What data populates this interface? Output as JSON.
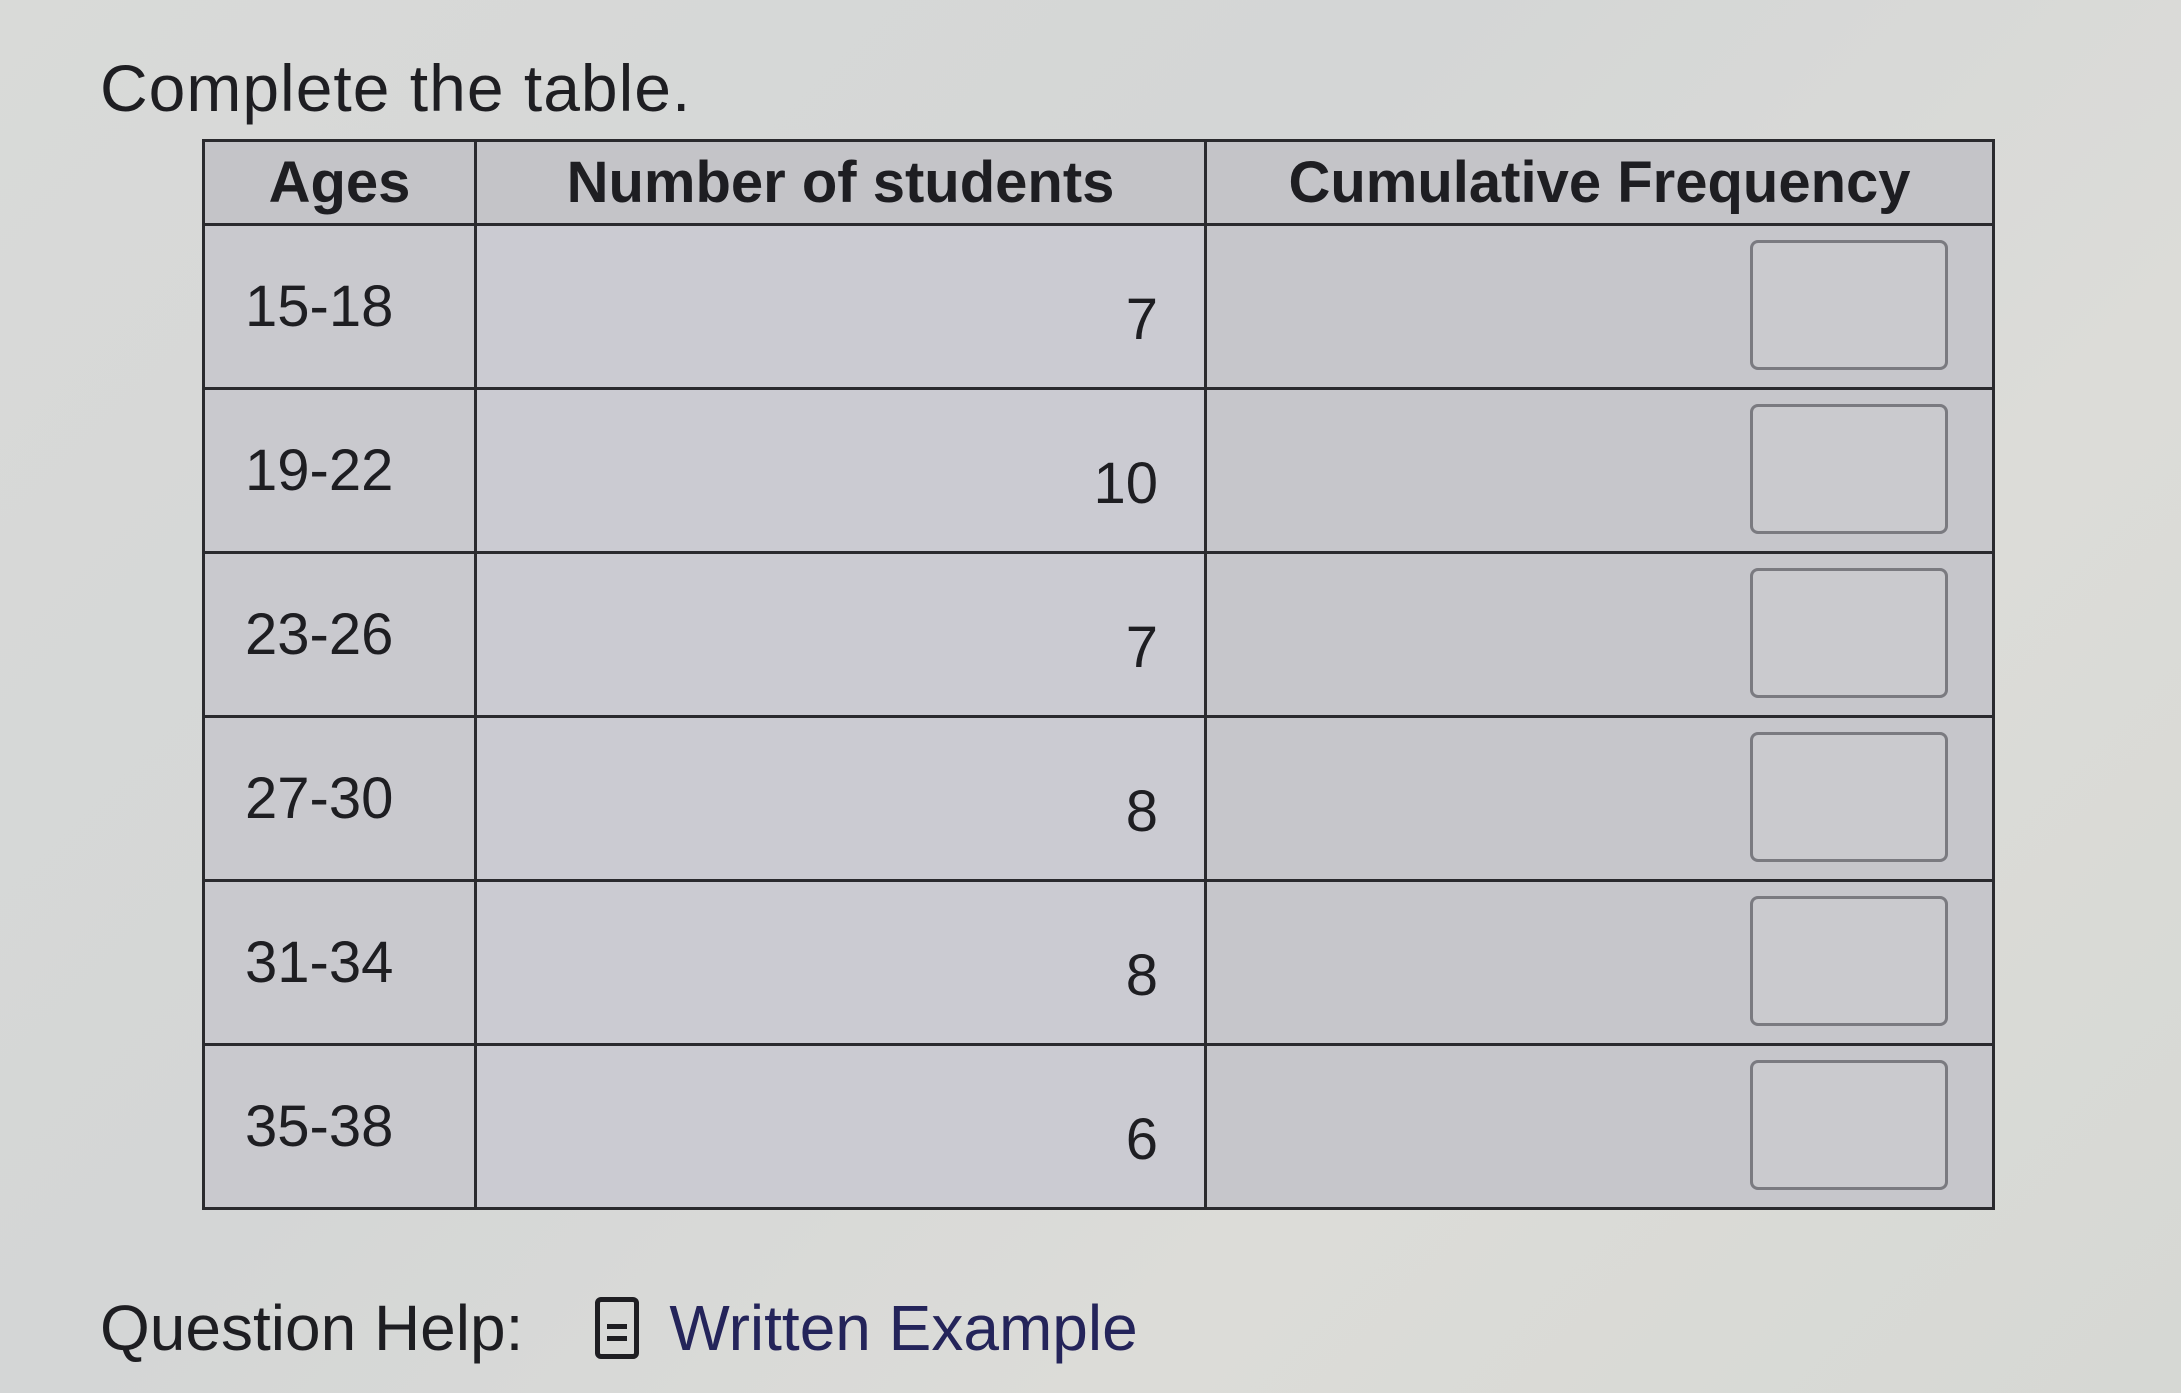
{
  "prompt": "Complete the table.",
  "table": {
    "headers": [
      "Ages",
      "Number of students",
      "Cumulative Frequency"
    ],
    "rows": [
      {
        "ages": "15-18",
        "students": "7",
        "cumulative": ""
      },
      {
        "ages": "19-22",
        "students": "10",
        "cumulative": ""
      },
      {
        "ages": "23-26",
        "students": "7",
        "cumulative": ""
      },
      {
        "ages": "27-30",
        "students": "8",
        "cumulative": ""
      },
      {
        "ages": "31-34",
        "students": "8",
        "cumulative": ""
      },
      {
        "ages": "35-38",
        "students": "6",
        "cumulative": ""
      }
    ]
  },
  "help": {
    "label": "Question Help:",
    "icon": "document-icon",
    "link": "Written Example"
  }
}
